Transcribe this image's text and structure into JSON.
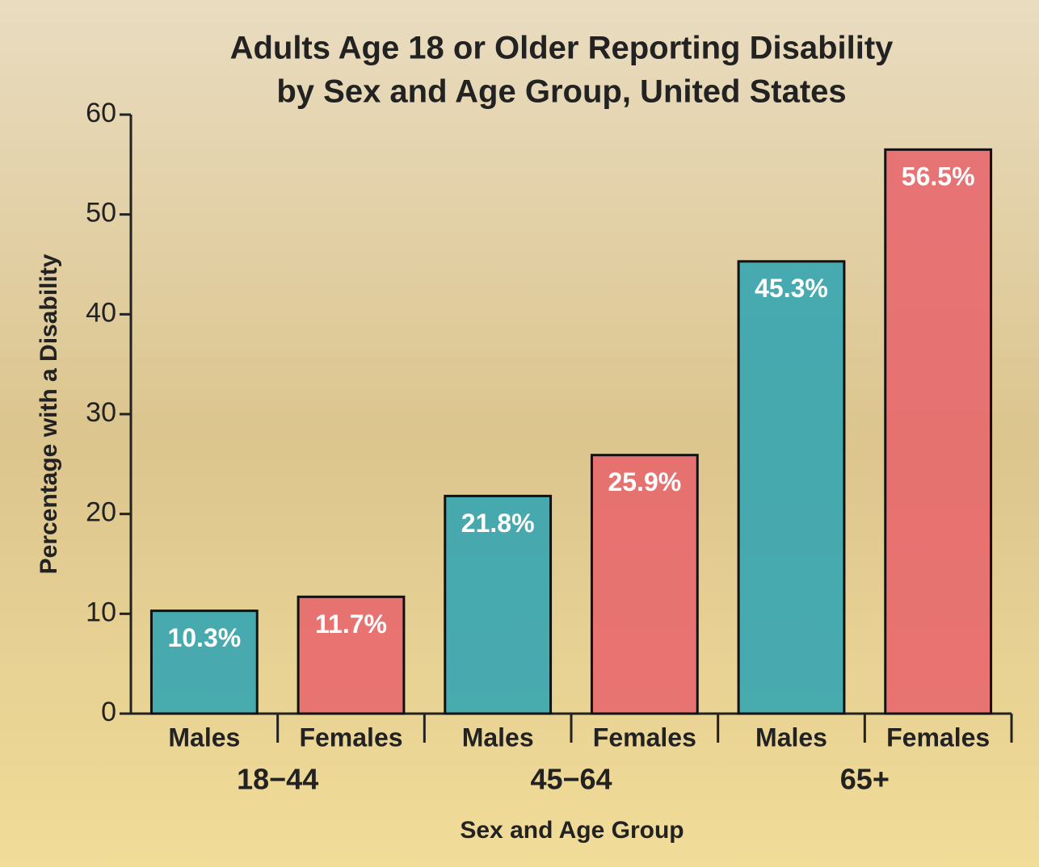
{
  "chart_data": {
    "type": "bar",
    "title": [
      "Adults Age 18 or Older Reporting Disability",
      "by Sex and Age Group, United States"
    ],
    "categories": [
      "18−44",
      "45−64",
      "65+"
    ],
    "series": [
      {
        "name": "Males",
        "color": "#2ba3b3",
        "values": [
          10.3,
          21.8,
          45.3
        ],
        "value_labels": [
          "10.3%",
          "21.8%",
          "45.3%"
        ]
      },
      {
        "name": "Females",
        "color": "#e8636b",
        "values": [
          11.7,
          25.9,
          56.5
        ],
        "value_labels": [
          "11.7%",
          "25.9%",
          "56.5%"
        ]
      }
    ],
    "ylabel": "Percentage with a Disability",
    "xlabel": "Sex and Age Group",
    "ylim": [
      0,
      60
    ],
    "yticks": [
      0,
      10,
      20,
      30,
      40,
      50,
      60
    ]
  }
}
